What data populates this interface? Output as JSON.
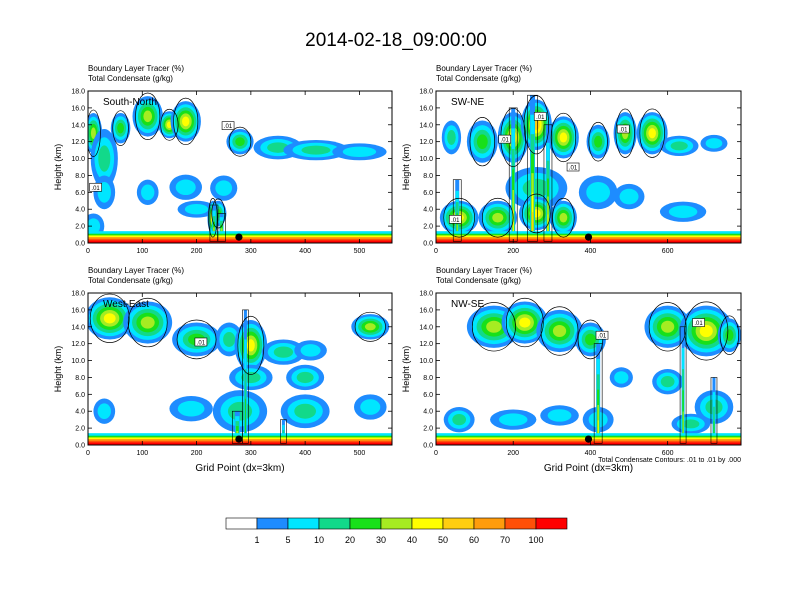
{
  "title": "2014-02-18_09:00:00",
  "chart_data": [
    {
      "type": "heatmap",
      "panel_label": "South-North",
      "field_label": "Boundary Layer Tracer   (%)",
      "contour_label": "Total Condensate   (g/kg)",
      "ylabel": "Height (km)",
      "xlabel": "",
      "xlim": [
        0,
        560
      ],
      "ylim": [
        0,
        18
      ],
      "xticks": [
        "0",
        "100",
        "200",
        "300",
        "400",
        "500"
      ],
      "yticks": [
        "0.0",
        "2.0",
        "4.0",
        "6.0",
        "8.0",
        "10.0",
        "12.0",
        "14.0",
        "16.0",
        "18.0"
      ],
      "marker_x": 278,
      "contour_tags": [
        {
          "x": 258,
          "y": 13.9,
          "text": ".01"
        },
        {
          "x": 14,
          "y": 6.6,
          "text": ".01"
        }
      ],
      "blobs": [
        [
          10,
          13,
          16,
          2.4,
          5
        ],
        [
          60,
          13.6,
          18,
          1.8,
          4
        ],
        [
          110,
          15.0,
          28,
          2.4,
          5
        ],
        [
          150,
          14.0,
          20,
          1.6,
          6
        ],
        [
          180,
          14.4,
          28,
          2.4,
          6
        ],
        [
          280,
          12.0,
          25,
          1.5,
          4
        ],
        [
          350,
          11.3,
          45,
          1.4,
          3
        ],
        [
          420,
          11.0,
          60,
          1.2,
          3
        ],
        [
          500,
          10.8,
          50,
          1.0,
          2
        ],
        [
          30,
          10.0,
          25,
          3.5,
          3
        ],
        [
          30,
          6.0,
          20,
          2.0,
          2
        ],
        [
          110,
          6.0,
          20,
          1.5,
          2
        ],
        [
          180,
          6.6,
          30,
          1.5,
          2
        ],
        [
          250,
          6.5,
          25,
          1.5,
          2
        ],
        [
          200,
          4.0,
          35,
          1.0,
          2
        ],
        [
          240,
          3.5,
          15,
          1.5,
          4
        ],
        [
          230,
          3.0,
          10,
          2.0,
          7
        ],
        [
          10,
          2.0,
          20,
          1.5,
          2
        ]
      ],
      "towers": [
        [
          232,
          0.2,
          4.5,
          4,
          6
        ],
        [
          246,
          0.2,
          3.5,
          4,
          7
        ]
      ]
    },
    {
      "type": "heatmap",
      "panel_label": "SW-NE",
      "field_label": "Boundary Layer Tracer   (%)",
      "contour_label": "Total Condensate   (g/kg)",
      "ylabel": "Height (km)",
      "xlabel": "",
      "xlim": [
        0,
        790
      ],
      "ylim": [
        0,
        18
      ],
      "xticks": [
        "0",
        "200",
        "400",
        "600"
      ],
      "yticks": [
        "0.0",
        "2.0",
        "4.0",
        "6.0",
        "8.0",
        "10.0",
        "12.0",
        "14.0",
        "16.0",
        "18.0"
      ],
      "marker_x": 395,
      "contour_tags": [
        {
          "x": 270,
          "y": 15.0,
          "text": ".01"
        },
        {
          "x": 178,
          "y": 12.3,
          "text": ".01"
        },
        {
          "x": 355,
          "y": 9.0,
          "text": ".01"
        },
        {
          "x": 485,
          "y": 13.5,
          "text": ".01"
        },
        {
          "x": 50,
          "y": 2.8,
          "text": ".01"
        }
      ],
      "blobs": [
        [
          40,
          12.5,
          25,
          2.0,
          3
        ],
        [
          120,
          12.0,
          40,
          2.5,
          4
        ],
        [
          200,
          12.5,
          40,
          3.0,
          6
        ],
        [
          260,
          14.0,
          40,
          3.0,
          7
        ],
        [
          330,
          12.5,
          40,
          2.5,
          6
        ],
        [
          420,
          12.0,
          30,
          2.0,
          4
        ],
        [
          490,
          13.0,
          30,
          2.5,
          5
        ],
        [
          560,
          13.0,
          40,
          2.5,
          6
        ],
        [
          630,
          11.5,
          50,
          1.2,
          3
        ],
        [
          720,
          11.8,
          35,
          1.0,
          2
        ],
        [
          260,
          6.5,
          80,
          2.5,
          3
        ],
        [
          420,
          6.0,
          50,
          2.0,
          2
        ],
        [
          500,
          5.5,
          40,
          1.5,
          2
        ],
        [
          640,
          3.7,
          60,
          1.2,
          2
        ],
        [
          60,
          3.0,
          50,
          2.0,
          6
        ],
        [
          160,
          3.0,
          50,
          2.0,
          5
        ],
        [
          260,
          3.5,
          45,
          2.0,
          6
        ],
        [
          330,
          3.0,
          35,
          2.0,
          5
        ]
      ],
      "towers": [
        [
          55,
          0.2,
          7.5,
          4,
          5
        ],
        [
          200,
          0.2,
          16.0,
          4,
          6
        ],
        [
          250,
          0.2,
          17.5,
          5,
          7
        ],
        [
          290,
          0.2,
          14.0,
          4,
          6
        ]
      ]
    },
    {
      "type": "heatmap",
      "panel_label": "West-East",
      "field_label": "Boundary Layer Tracer   (%)",
      "contour_label": "Total Condensate   (g/kg)",
      "ylabel": "Height (km)",
      "xlabel": "Grid Point (dx=3km)",
      "xlim": [
        0,
        560
      ],
      "ylim": [
        0,
        18
      ],
      "xticks": [
        "0",
        "100",
        "200",
        "300",
        "400",
        "500"
      ],
      "yticks": [
        "0.0",
        "2.0",
        "4.0",
        "6.0",
        "8.0",
        "10.0",
        "12.0",
        "14.0",
        "16.0",
        "18.0"
      ],
      "marker_x": 278,
      "contour_tags": [
        {
          "x": 208,
          "y": 12.2,
          "text": ".01"
        }
      ],
      "blobs": [
        [
          40,
          15.0,
          45,
          2.5,
          6
        ],
        [
          110,
          14.5,
          45,
          2.5,
          5
        ],
        [
          200,
          12.5,
          45,
          2.0,
          4
        ],
        [
          260,
          12.5,
          25,
          2.0,
          3
        ],
        [
          300,
          11.8,
          30,
          3.0,
          6
        ],
        [
          360,
          11.0,
          40,
          1.5,
          3
        ],
        [
          410,
          11.2,
          30,
          1.2,
          2
        ],
        [
          520,
          14.0,
          35,
          1.5,
          5
        ],
        [
          300,
          8.0,
          40,
          1.5,
          3
        ],
        [
          400,
          8.0,
          35,
          1.5,
          3
        ],
        [
          190,
          4.3,
          40,
          1.5,
          2
        ],
        [
          280,
          4.0,
          50,
          2.5,
          3
        ],
        [
          400,
          4.0,
          45,
          2.0,
          3
        ],
        [
          520,
          4.5,
          30,
          1.5,
          2
        ],
        [
          30,
          4.0,
          20,
          1.5,
          2
        ]
      ],
      "towers": [
        [
          275,
          0.2,
          4.0,
          5,
          6
        ],
        [
          290,
          0.2,
          16.0,
          3,
          4
        ],
        [
          360,
          0.2,
          3.0,
          3,
          4
        ]
      ]
    },
    {
      "type": "heatmap",
      "panel_label": "NW-SE",
      "field_label": "Boundary Layer Tracer   (%)",
      "contour_label": "Total Condensate   (g/kg)",
      "ylabel": "Height (km)",
      "xlabel": "Grid Point (dx=3km)",
      "contour_note": "Total Condensate Contours: .01 to .01 by .000",
      "xlim": [
        0,
        790
      ],
      "ylim": [
        0,
        18
      ],
      "xticks": [
        "0",
        "200",
        "400",
        "600"
      ],
      "yticks": [
        "0.0",
        "2.0",
        "4.0",
        "6.0",
        "8.0",
        "10.0",
        "12.0",
        "14.0",
        "16.0",
        "18.0"
      ],
      "marker_x": 395,
      "contour_tags": [
        {
          "x": 430,
          "y": 13.0,
          "text": ".01"
        },
        {
          "x": 680,
          "y": 14.5,
          "text": ".01"
        }
      ],
      "blobs": [
        [
          150,
          14.0,
          70,
          2.5,
          5
        ],
        [
          230,
          14.5,
          60,
          2.5,
          6
        ],
        [
          320,
          13.5,
          60,
          2.5,
          5
        ],
        [
          400,
          12.5,
          40,
          2.0,
          4
        ],
        [
          600,
          14.0,
          60,
          2.5,
          5
        ],
        [
          700,
          13.5,
          70,
          3.0,
          6
        ],
        [
          760,
          13.0,
          30,
          2.0,
          4
        ],
        [
          480,
          8.0,
          30,
          1.2,
          2
        ],
        [
          600,
          7.5,
          40,
          1.5,
          3
        ],
        [
          720,
          4.5,
          50,
          2.0,
          3
        ],
        [
          60,
          3.0,
          40,
          1.5,
          3
        ],
        [
          200,
          3.0,
          60,
          1.2,
          2
        ],
        [
          320,
          3.5,
          50,
          1.2,
          2
        ],
        [
          420,
          3.0,
          40,
          1.5,
          2
        ],
        [
          660,
          2.5,
          50,
          1.2,
          3
        ]
      ],
      "towers": [
        [
          420,
          0.2,
          12.0,
          4,
          6
        ],
        [
          640,
          0.2,
          14.0,
          3,
          5
        ],
        [
          720,
          0.2,
          8.0,
          3,
          4
        ]
      ]
    }
  ],
  "colorbar": {
    "labels": [
      "1",
      "5",
      "10",
      "20",
      "30",
      "40",
      "50",
      "60",
      "70",
      "100"
    ],
    "colors": [
      "#ffffff",
      "#1e8cff",
      "#00e6ff",
      "#12d98a",
      "#18e01a",
      "#a6ec22",
      "#ffff00",
      "#ffce10",
      "#ff9c0c",
      "#ff5008",
      "#ff0000"
    ]
  }
}
